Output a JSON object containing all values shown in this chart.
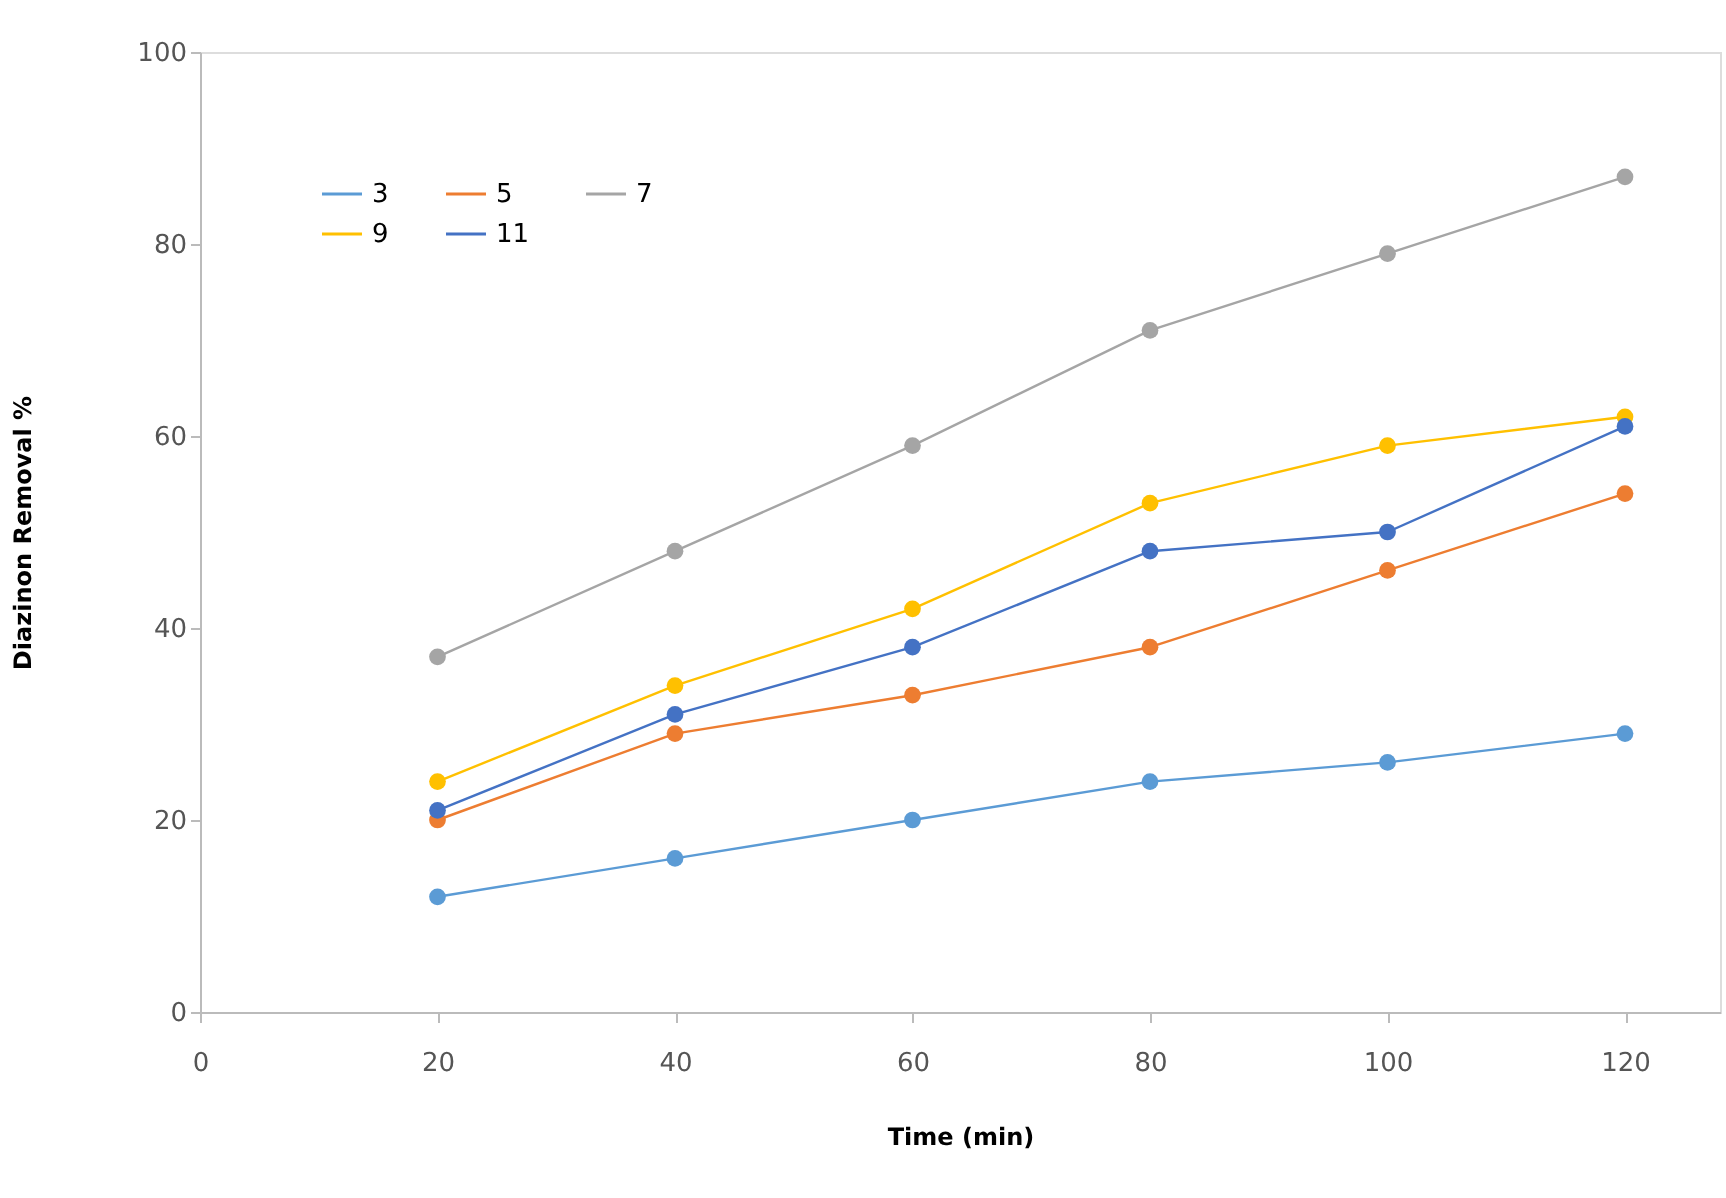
{
  "chart_data": {
    "type": "line",
    "xlabel": "Time (min)",
    "ylabel": "Diazinon Removal %",
    "x": [
      20,
      40,
      60,
      80,
      100,
      120
    ],
    "series": [
      {
        "name": "3",
        "color": "#5b9bd5",
        "values": [
          12,
          16,
          20,
          24,
          26,
          29
        ]
      },
      {
        "name": "5",
        "color": "#ed7d31",
        "values": [
          20,
          29,
          33,
          38,
          46,
          54
        ]
      },
      {
        "name": "7",
        "color": "#a5a5a5",
        "values": [
          37,
          48,
          59,
          71,
          79,
          87
        ]
      },
      {
        "name": "9",
        "color": "#ffc000",
        "values": [
          24,
          34,
          42,
          53,
          59,
          62
        ]
      },
      {
        "name": "11",
        "color": "#4472c4",
        "values": [
          21,
          31,
          38,
          48,
          50,
          61
        ]
      }
    ],
    "xlim": [
      0,
      128
    ],
    "xticks": [
      0,
      20,
      40,
      60,
      80,
      100,
      120
    ],
    "ylim": [
      0,
      100
    ],
    "yticks": [
      0,
      20,
      40,
      60,
      80,
      100
    ],
    "grid": false,
    "legend": "top left",
    "marker": "circle",
    "line_style": "solid"
  }
}
